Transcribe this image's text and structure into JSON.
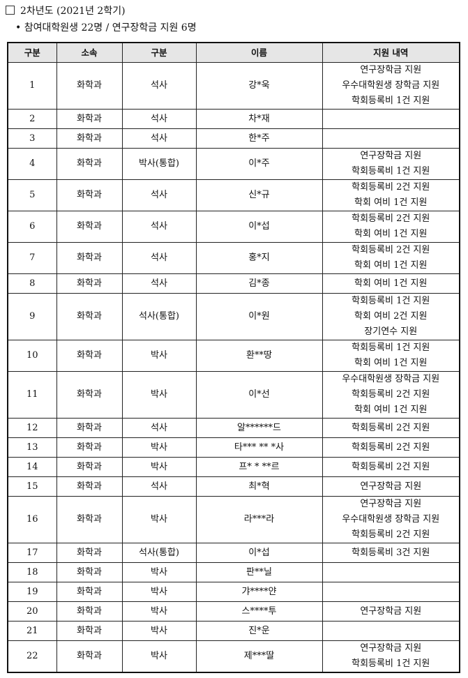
{
  "heading": "2차년도 (2021년 2학기)",
  "subheading": "• 참여대학원생 22명 / 연구장학금 지원 6명",
  "table": {
    "headers": [
      "구분",
      "소속",
      "구분",
      "이름",
      "지원 내역"
    ],
    "rows": [
      {
        "no": "1",
        "dept": "화학과",
        "degree": "석사",
        "name": "강*욱",
        "support": [
          "연구장학금 지원",
          "우수대학원생 장학금 지원",
          "학회등록비 1건 지원"
        ]
      },
      {
        "no": "2",
        "dept": "화학과",
        "degree": "석사",
        "name": "차*재",
        "support": []
      },
      {
        "no": "3",
        "dept": "화학과",
        "degree": "석사",
        "name": "한*주",
        "support": []
      },
      {
        "no": "4",
        "dept": "화학과",
        "degree": "박사(통합)",
        "name": "이*주",
        "support": [
          "연구장학금 지원",
          "학회등록비 1건 지원"
        ]
      },
      {
        "no": "5",
        "dept": "화학과",
        "degree": "석사",
        "name": "신*규",
        "support": [
          "학회등록비 2건 지원",
          "학회 여비 1건 지원"
        ]
      },
      {
        "no": "6",
        "dept": "화학과",
        "degree": "석사",
        "name": "이*섭",
        "support": [
          "학회등록비 2건 지원",
          "학회 여비 1건 지원"
        ]
      },
      {
        "no": "7",
        "dept": "화학과",
        "degree": "석사",
        "name": "홍*지",
        "support": [
          "학회등록비 2건 지원",
          "학회 여비 1건 지원"
        ]
      },
      {
        "no": "8",
        "dept": "화학과",
        "degree": "석사",
        "name": "김*종",
        "support": [
          "학회 여비 1건 지원"
        ]
      },
      {
        "no": "9",
        "dept": "화학과",
        "degree": "석사(통합)",
        "name": "이*원",
        "support": [
          "학회등록비 1건 지원",
          "학회 여비 2건 지원",
          "장기연수 지원"
        ]
      },
      {
        "no": "10",
        "dept": "화학과",
        "degree": "박사",
        "name": "환**땅",
        "support": [
          "학회등록비 1건 지원",
          "학회 여비 1건 지원"
        ]
      },
      {
        "no": "11",
        "dept": "화학과",
        "degree": "박사",
        "name": "이*선",
        "support": [
          "우수대학원생 장학금 지원",
          "학회등록비 2건 지원",
          "학회 여비 1건 지원"
        ]
      },
      {
        "no": "12",
        "dept": "화학과",
        "degree": "석사",
        "name": "알******드",
        "support": [
          "학회등록비 2건 지원"
        ]
      },
      {
        "no": "13",
        "dept": "화학과",
        "degree": "박사",
        "name": "타*** ** *사",
        "support": [
          "학회등록비 2건 지원"
        ]
      },
      {
        "no": "14",
        "dept": "화학과",
        "degree": "박사",
        "name": "프* * **르",
        "support": [
          "학회등록비 2건 지원"
        ]
      },
      {
        "no": "15",
        "dept": "화학과",
        "degree": "석사",
        "name": "최*혁",
        "support": [
          "연구장학금 지원"
        ]
      },
      {
        "no": "16",
        "dept": "화학과",
        "degree": "박사",
        "name": "라***라",
        "support": [
          "연구장학금 지원",
          "우수대학원생 장학금 지원",
          "학회등록비 2건 지원"
        ]
      },
      {
        "no": "17",
        "dept": "화학과",
        "degree": "석사(통합)",
        "name": "이*섭",
        "support": [
          "학회등록비 3건 지원"
        ]
      },
      {
        "no": "18",
        "dept": "화학과",
        "degree": "박사",
        "name": "판**닐",
        "support": []
      },
      {
        "no": "19",
        "dept": "화학과",
        "degree": "박사",
        "name": "갸****얀",
        "support": []
      },
      {
        "no": "20",
        "dept": "화학과",
        "degree": "박사",
        "name": "스****투",
        "support": [
          "연구장학금 지원"
        ]
      },
      {
        "no": "21",
        "dept": "화학과",
        "degree": "박사",
        "name": "진*운",
        "support": []
      },
      {
        "no": "22",
        "dept": "화학과",
        "degree": "박사",
        "name": "제***딸",
        "support": [
          "연구장학금 지원",
          "학회등록비 1건 지원"
        ]
      }
    ]
  }
}
